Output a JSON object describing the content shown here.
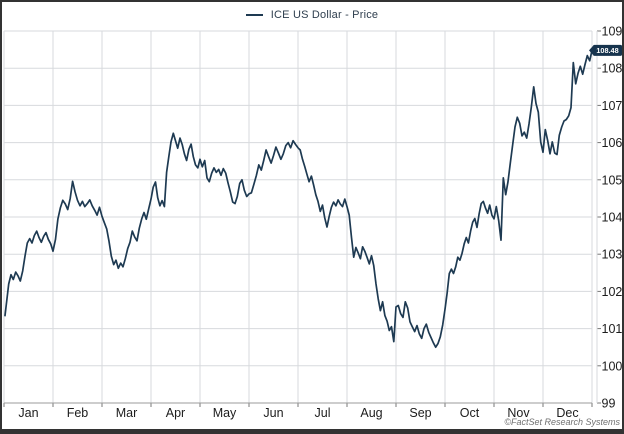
{
  "chart_data": {
    "type": "line",
    "legend_label": "ICE US Dollar - Price",
    "legend_position": "top-center",
    "grid": true,
    "categories": [
      "Jan",
      "Feb",
      "Mar",
      "Apr",
      "May",
      "Jun",
      "Jul",
      "Aug",
      "Sep",
      "Oct",
      "Nov",
      "Dec"
    ],
    "ylim": [
      99,
      109
    ],
    "y_ticks": [
      99,
      100,
      101,
      102,
      103,
      104,
      105,
      106,
      107,
      108,
      109
    ],
    "last_price_label": "108.48",
    "series": [
      {
        "name": "ICE US Dollar - Price",
        "color": "#1e3a52",
        "monthly_values": [
          [
            101.35,
            102.2,
            102.45,
            102.32,
            102.52,
            102.42,
            102.28,
            102.55,
            102.95,
            103.3,
            103.42,
            103.3,
            103.5,
            103.62,
            103.45,
            103.32,
            103.48,
            103.58,
            103.4,
            103.28,
            103.08
          ],
          [
            103.4,
            103.95,
            104.25,
            104.45,
            104.35,
            104.2,
            104.5,
            104.96,
            104.68,
            104.45,
            104.3,
            104.42,
            104.28,
            104.36,
            104.46,
            104.3,
            104.18,
            104.05,
            104.26,
            104.02
          ],
          [
            103.85,
            103.68,
            103.35,
            102.95,
            102.72,
            102.84,
            102.62,
            102.76,
            102.66,
            102.88,
            103.15,
            103.32,
            103.62,
            103.46,
            103.36,
            103.7,
            103.95,
            104.12,
            103.94,
            104.22,
            104.48
          ],
          [
            104.8,
            104.94,
            104.52,
            104.3,
            104.44,
            104.28,
            105.2,
            105.62,
            106.02,
            106.25,
            106.05,
            105.85,
            106.12,
            105.95,
            105.7,
            105.52,
            105.82,
            105.96,
            105.62,
            105.4,
            105.32,
            105.55
          ],
          [
            105.35,
            105.52,
            105.05,
            104.95,
            105.18,
            105.32,
            105.2,
            105.28,
            105.12,
            105.3,
            105.18,
            104.92,
            104.68,
            104.4,
            104.36,
            104.55,
            104.9,
            105.0,
            104.72,
            104.55,
            104.62
          ],
          [
            104.65,
            104.88,
            105.12,
            105.4,
            105.26,
            105.52,
            105.8,
            105.62,
            105.45,
            105.65,
            105.88,
            105.72,
            105.55,
            105.7,
            105.92,
            106.0,
            105.86,
            106.05,
            105.95,
            105.86
          ],
          [
            105.8,
            105.55,
            105.36,
            105.15,
            104.95,
            105.1,
            104.86,
            104.6,
            104.42,
            104.15,
            104.32,
            103.98,
            103.73,
            104.02,
            104.26,
            104.4,
            104.3,
            104.46,
            104.35,
            104.28,
            104.48,
            104.28
          ],
          [
            104.05,
            103.45,
            102.92,
            103.18,
            103.04,
            102.88,
            103.2,
            103.08,
            102.92,
            102.74,
            102.96,
            102.7,
            102.2,
            101.8,
            101.48,
            101.72,
            101.35,
            101.2,
            100.95,
            101.05,
            100.65,
            101.58
          ],
          [
            101.62,
            101.4,
            101.3,
            101.72,
            101.55,
            101.18,
            101.05,
            100.92,
            101.08,
            100.86,
            100.74,
            101.0,
            101.12,
            100.9,
            100.76,
            100.62,
            100.5,
            100.6,
            100.78,
            101.1,
            101.52
          ],
          [
            101.95,
            102.48,
            102.6,
            102.48,
            102.66,
            102.92,
            102.84,
            103.02,
            103.28,
            103.45,
            103.3,
            103.62,
            103.86,
            103.96,
            103.72,
            104.08,
            104.36,
            104.42,
            104.24,
            104.1,
            104.32,
            104.05,
            103.95
          ],
          [
            104.28,
            103.9,
            103.38,
            105.05,
            104.6,
            104.95,
            105.45,
            105.95,
            106.42,
            106.68,
            106.52,
            106.18,
            106.28,
            106.12,
            106.5,
            106.95,
            107.5,
            107.05,
            106.82,
            106.02,
            105.74
          ],
          [
            106.35,
            106.05,
            105.7,
            106.02,
            105.72,
            105.68,
            106.2,
            106.42,
            106.58,
            106.62,
            106.72,
            106.94,
            108.15,
            107.58,
            107.86,
            108.05,
            107.84,
            108.1,
            108.34,
            108.2,
            108.48
          ]
        ]
      }
    ]
  },
  "colors": {
    "line": "#1e3a52",
    "grid": "#d7dadd",
    "axis": "#9b9b9b",
    "tick": "#777777",
    "label_text": "#1c1c1c",
    "flag_bg": "#17344e",
    "flag_text": "#ffffff",
    "frame": "#333333"
  },
  "attribution": "©FactSet Research Systems"
}
